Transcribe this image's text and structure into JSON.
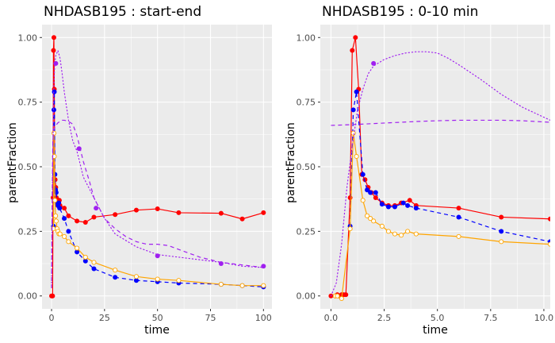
{
  "chart_data": [
    {
      "type": "line",
      "title": "NHDASB195 : start-end",
      "xlabel": "time",
      "ylabel": "parentFraction",
      "xlim": [
        -4.5,
        104
      ],
      "ylim": [
        -0.05,
        1.05
      ],
      "xticks": [
        0,
        25,
        50,
        75,
        100
      ],
      "xtick_labels": [
        "0",
        "25",
        "50",
        "75",
        "100"
      ],
      "yticks": [
        0,
        0.25,
        0.5,
        0.75,
        1.0
      ],
      "ytick_labels": [
        "0.00",
        "0.25",
        "0.50",
        "0.75",
        "1.00"
      ],
      "grid": true,
      "series": [
        {
          "color": "#ff0000",
          "line_style": "solid",
          "marker": "filled",
          "x": [
            0,
            0.3,
            0.5,
            0.7,
            0.9,
            1.1,
            1.3,
            1.5,
            1.7,
            2.0,
            2.3,
            2.6,
            3.0,
            3.4,
            3.7,
            4.0,
            6.0,
            8.0,
            12.0,
            16.0,
            20.0,
            30.0,
            40.0,
            50.0,
            60.0,
            80.0,
            90.0,
            100.0
          ],
          "y": [
            0.0,
            0.0,
            0.0,
            0.38,
            0.95,
            1.0,
            0.8,
            0.47,
            0.45,
            0.42,
            0.38,
            0.36,
            0.35,
            0.36,
            0.37,
            0.35,
            0.34,
            0.31,
            0.29,
            0.285,
            0.305,
            0.315,
            0.332,
            0.337,
            0.322,
            0.32,
            0.298,
            0.322
          ]
        },
        {
          "color": "#0000ff",
          "line_style": "dashed",
          "marker": "filled",
          "x": [
            0.9,
            1.1,
            1.3,
            1.6,
            1.9,
            2.2,
            2.6,
            3.0,
            3.4,
            3.8,
            6.0,
            8.0,
            12.0,
            16.0,
            20.0,
            30.0,
            40.0,
            50.0,
            60.0,
            80.0,
            90.0,
            100.0
          ],
          "y": [
            0.27,
            0.72,
            0.79,
            0.47,
            0.41,
            0.4,
            0.36,
            0.35,
            0.36,
            0.34,
            0.3,
            0.25,
            0.17,
            0.135,
            0.105,
            0.072,
            0.06,
            0.055,
            0.05,
            0.045,
            0.04,
            0.035
          ]
        },
        {
          "color": "#ffa500",
          "line_style": "solid",
          "marker": "open",
          "x": [
            0.9,
            1.1,
            1.3,
            1.6,
            1.9,
            2.2,
            2.6,
            3.0,
            3.5,
            4.0,
            6.0,
            8.0,
            12.0,
            16.0,
            20.0,
            30.0,
            40.0,
            50.0,
            60.0,
            80.0,
            90.0,
            100.0
          ],
          "y": [
            0.26,
            0.63,
            0.54,
            0.37,
            0.31,
            0.29,
            0.26,
            0.25,
            0.24,
            0.24,
            0.23,
            0.21,
            0.185,
            0.15,
            0.13,
            0.1,
            0.075,
            0.065,
            0.06,
            0.045,
            0.04,
            0.04
          ]
        },
        {
          "color": "#a020f0",
          "line_style": "dotted",
          "marker": "none",
          "x": [
            0,
            0.5,
            1,
            1.5,
            2,
            3,
            4,
            5,
            6,
            8,
            10,
            12,
            15,
            20,
            25,
            30,
            40,
            50,
            60,
            70,
            80,
            90,
            100
          ],
          "y": [
            0.05,
            0.5,
            0.79,
            0.9,
            0.93,
            0.95,
            0.92,
            0.86,
            0.79,
            0.68,
            0.6,
            0.56,
            0.46,
            0.38,
            0.3,
            0.24,
            0.19,
            0.16,
            0.15,
            0.14,
            0.13,
            0.115,
            0.11
          ]
        },
        {
          "color": "#a020f0",
          "line_style": "dashed",
          "marker": "none",
          "x": [
            0,
            0.3,
            0.6,
            1,
            1.5,
            2,
            3,
            4,
            5,
            6,
            7,
            8,
            9,
            10,
            12,
            15,
            18,
            20,
            25,
            30,
            35,
            40,
            45,
            50,
            55,
            60,
            70,
            80,
            90,
            100
          ],
          "y": [
            0.03,
            0.4,
            0.6,
            0.64,
            0.65,
            0.66,
            0.67,
            0.675,
            0.68,
            0.68,
            0.678,
            0.675,
            0.67,
            0.665,
            0.62,
            0.52,
            0.44,
            0.38,
            0.3,
            0.26,
            0.23,
            0.21,
            0.2,
            0.2,
            0.195,
            0.18,
            0.15,
            0.13,
            0.12,
            0.11
          ]
        },
        {
          "color": "#a020f0",
          "line_style": "none",
          "marker": "filled",
          "x": [
            2.0,
            13.0,
            21.0,
            50.0,
            80.0,
            100.0
          ],
          "y": [
            0.9,
            0.57,
            0.34,
            0.155,
            0.125,
            0.115
          ]
        }
      ]
    },
    {
      "type": "line",
      "title": "NHDASB195 : 0-10 min",
      "xlabel": "time",
      "ylabel": "parentFraction",
      "xlim": [
        -0.5,
        10.3
      ],
      "ylim": [
        -0.05,
        1.05
      ],
      "xticks": [
        0,
        2.5,
        5,
        7.5,
        10
      ],
      "xtick_labels": [
        "0.0",
        "2.5",
        "5.0",
        "7.5",
        "10.0"
      ],
      "yticks": [
        0,
        0.25,
        0.5,
        0.75,
        1.0
      ],
      "ytick_labels": [
        "0.00",
        "0.25",
        "0.50",
        "0.75",
        "1.00"
      ],
      "grid": true,
      "series": [
        {
          "color": "#ff0000",
          "line_style": "solid",
          "marker": "filled",
          "x": [
            0.0,
            0.2,
            0.3,
            0.4,
            0.5,
            0.6,
            0.7,
            0.9,
            1.0,
            1.15,
            1.3,
            1.45,
            1.6,
            1.75,
            1.9,
            2.1,
            2.4,
            2.7,
            3.0,
            3.3,
            3.7,
            4.0,
            6.0,
            8.0,
            10.3
          ],
          "y": [
            0.0,
            0.0,
            0.005,
            0.0,
            0.005,
            0.005,
            0.005,
            0.38,
            0.95,
            1.0,
            0.8,
            0.47,
            0.45,
            0.42,
            0.4,
            0.38,
            0.36,
            0.35,
            0.35,
            0.36,
            0.37,
            0.35,
            0.34,
            0.305,
            0.298
          ]
        },
        {
          "color": "#0000ff",
          "line_style": "dashed",
          "marker": "filled",
          "x": [
            0.9,
            1.05,
            1.2,
            1.5,
            1.7,
            1.85,
            2.1,
            2.4,
            2.7,
            3.0,
            3.4,
            3.6,
            4.0,
            6.0,
            8.0,
            10.3
          ],
          "y": [
            0.27,
            0.72,
            0.79,
            0.47,
            0.41,
            0.4,
            0.4,
            0.355,
            0.345,
            0.345,
            0.36,
            0.35,
            0.34,
            0.305,
            0.25,
            0.21
          ]
        },
        {
          "color": "#ffa500",
          "line_style": "solid",
          "marker": "open",
          "x": [
            0.2,
            0.3,
            0.5,
            0.9,
            1.05,
            1.2,
            1.5,
            1.7,
            1.85,
            2.0,
            2.4,
            2.7,
            3.0,
            3.3,
            3.6,
            4.0,
            6.0,
            8.0,
            10.3
          ],
          "y": [
            0.0,
            0.0,
            -0.01,
            0.26,
            0.63,
            0.54,
            0.37,
            0.31,
            0.3,
            0.29,
            0.27,
            0.25,
            0.24,
            0.235,
            0.25,
            0.24,
            0.23,
            0.21,
            0.2
          ]
        },
        {
          "color": "#a020f0",
          "line_style": "dotted",
          "marker": "none",
          "x": [
            0.0,
            0.25,
            0.5,
            0.75,
            1.0,
            1.25,
            1.5,
            1.75,
            2.0,
            2.5,
            3.0,
            3.5,
            4.0,
            4.5,
            5.0,
            5.5,
            6.0,
            7.0,
            8.0,
            9.0,
            10.3
          ],
          "y": [
            0.0,
            0.05,
            0.2,
            0.42,
            0.58,
            0.72,
            0.8,
            0.86,
            0.89,
            0.915,
            0.93,
            0.94,
            0.945,
            0.945,
            0.94,
            0.92,
            0.895,
            0.84,
            0.78,
            0.73,
            0.68
          ]
        },
        {
          "color": "#a020f0",
          "line_style": "dashed",
          "marker": "none",
          "x": [
            0.0,
            1.0,
            2.0,
            3.0,
            4.0,
            5.0,
            6.0,
            7.0,
            8.0,
            9.0,
            10.3
          ],
          "y": [
            0.66,
            0.663,
            0.667,
            0.671,
            0.675,
            0.678,
            0.68,
            0.68,
            0.68,
            0.678,
            0.672
          ]
        },
        {
          "color": "#a020f0",
          "line_style": "none",
          "marker": "filled",
          "x": [
            2.0
          ],
          "y": [
            0.9
          ]
        }
      ]
    }
  ]
}
